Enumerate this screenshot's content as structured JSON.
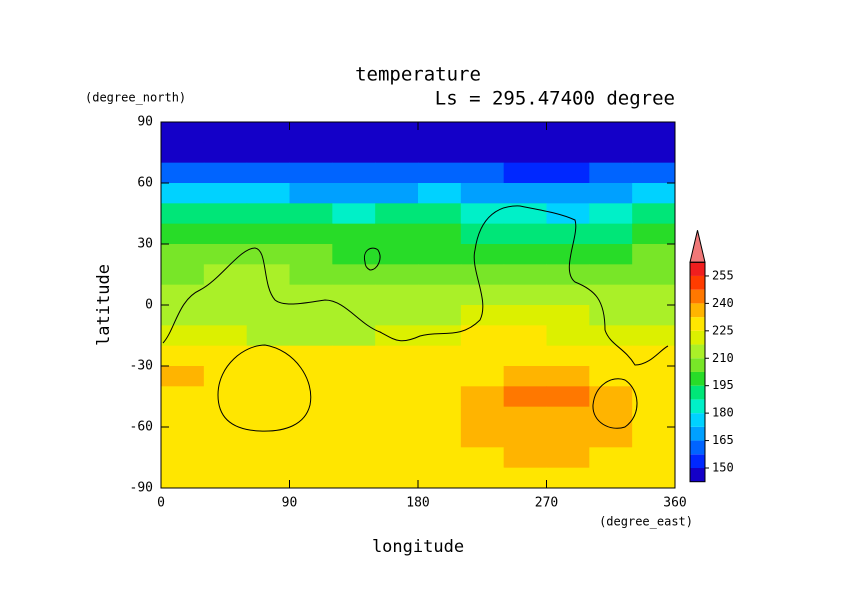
{
  "chart_data": {
    "type": "contour",
    "title": "temperature",
    "subtitle": "Ls = 295.47400 degree",
    "x_label": "longitude",
    "x_units": "(degree_east)",
    "y_label": "latitude",
    "y_units": "(degree_north)",
    "xlim": [
      0,
      360
    ],
    "xticks": [
      0,
      90,
      180,
      270,
      360
    ],
    "ylim": [
      -90,
      90
    ],
    "yticks": [
      90,
      60,
      30,
      0,
      -30,
      -60,
      -90
    ],
    "x": [
      15,
      45,
      75,
      105,
      135,
      165,
      195,
      225,
      255,
      285,
      315,
      345
    ],
    "y": [
      85,
      75,
      65,
      55,
      45,
      35,
      25,
      15,
      5,
      -5,
      -15,
      -25,
      -35,
      -45,
      -55,
      -65,
      -75,
      -85
    ],
    "values": [
      [
        145,
        145,
        145,
        145,
        145,
        145,
        145,
        145,
        145,
        145,
        145,
        145
      ],
      [
        148,
        148,
        148,
        148,
        148,
        148,
        148,
        148,
        148,
        148,
        148,
        148
      ],
      [
        162,
        162,
        160,
        158,
        158,
        160,
        162,
        160,
        156,
        156,
        158,
        160
      ],
      [
        178,
        176,
        175,
        172,
        170,
        172,
        176,
        172,
        165,
        165,
        168,
        175
      ],
      [
        190,
        190,
        190,
        188,
        186,
        188,
        190,
        186,
        180,
        178,
        182,
        188
      ],
      [
        198,
        198,
        198,
        196,
        195,
        196,
        198,
        194,
        190,
        190,
        192,
        196
      ],
      [
        204,
        204,
        205,
        205,
        202,
        200,
        202,
        200,
        200,
        198,
        200,
        204
      ],
      [
        208,
        210,
        210,
        208,
        206,
        206,
        206,
        206,
        206,
        205,
        206,
        208
      ],
      [
        212,
        214,
        214,
        212,
        210,
        210,
        210,
        210,
        212,
        214,
        210,
        212
      ],
      [
        214,
        216,
        214,
        214,
        212,
        213,
        215,
        218,
        220,
        218,
        214,
        216
      ],
      [
        218,
        218,
        217,
        216,
        216,
        218,
        222,
        225,
        226,
        224,
        220,
        218
      ],
      [
        226,
        228,
        228,
        228,
        228,
        228,
        228,
        228,
        228,
        228,
        228,
        228
      ],
      [
        235,
        228,
        228,
        228,
        228,
        228,
        228,
        230,
        234,
        234,
        232,
        228
      ],
      [
        232,
        228,
        228,
        228,
        228,
        228,
        228,
        234,
        241,
        240,
        234,
        230
      ],
      [
        228,
        228,
        228,
        228,
        228,
        228,
        230,
        234,
        236,
        236,
        234,
        232
      ],
      [
        228,
        228,
        228,
        228,
        228,
        228,
        230,
        234,
        234,
        234,
        234,
        232
      ],
      [
        228,
        228,
        228,
        228,
        228,
        228,
        228,
        232,
        234,
        234,
        232,
        230
      ],
      [
        228,
        228,
        228,
        228,
        228,
        228,
        228,
        228,
        230,
        230,
        228,
        228
      ]
    ],
    "levels": [
      142.5,
      150,
      157.5,
      165,
      172.5,
      180,
      187.5,
      195,
      202.5,
      210,
      217.5,
      225,
      232.5,
      240,
      247.5,
      255,
      262.5
    ],
    "colors": [
      "#1400c8",
      "#0028ff",
      "#0064ff",
      "#00a0ff",
      "#00d2ff",
      "#00f0c8",
      "#00e678",
      "#28dc28",
      "#78e628",
      "#aaf028",
      "#dcf000",
      "#ffe600",
      "#ffb400",
      "#ff7800",
      "#ff3c00",
      "#f01e1e"
    ],
    "extend_color": "#f07878",
    "colorbar_ticks": [
      150,
      165,
      180,
      195,
      210,
      225,
      240,
      255
    ]
  }
}
